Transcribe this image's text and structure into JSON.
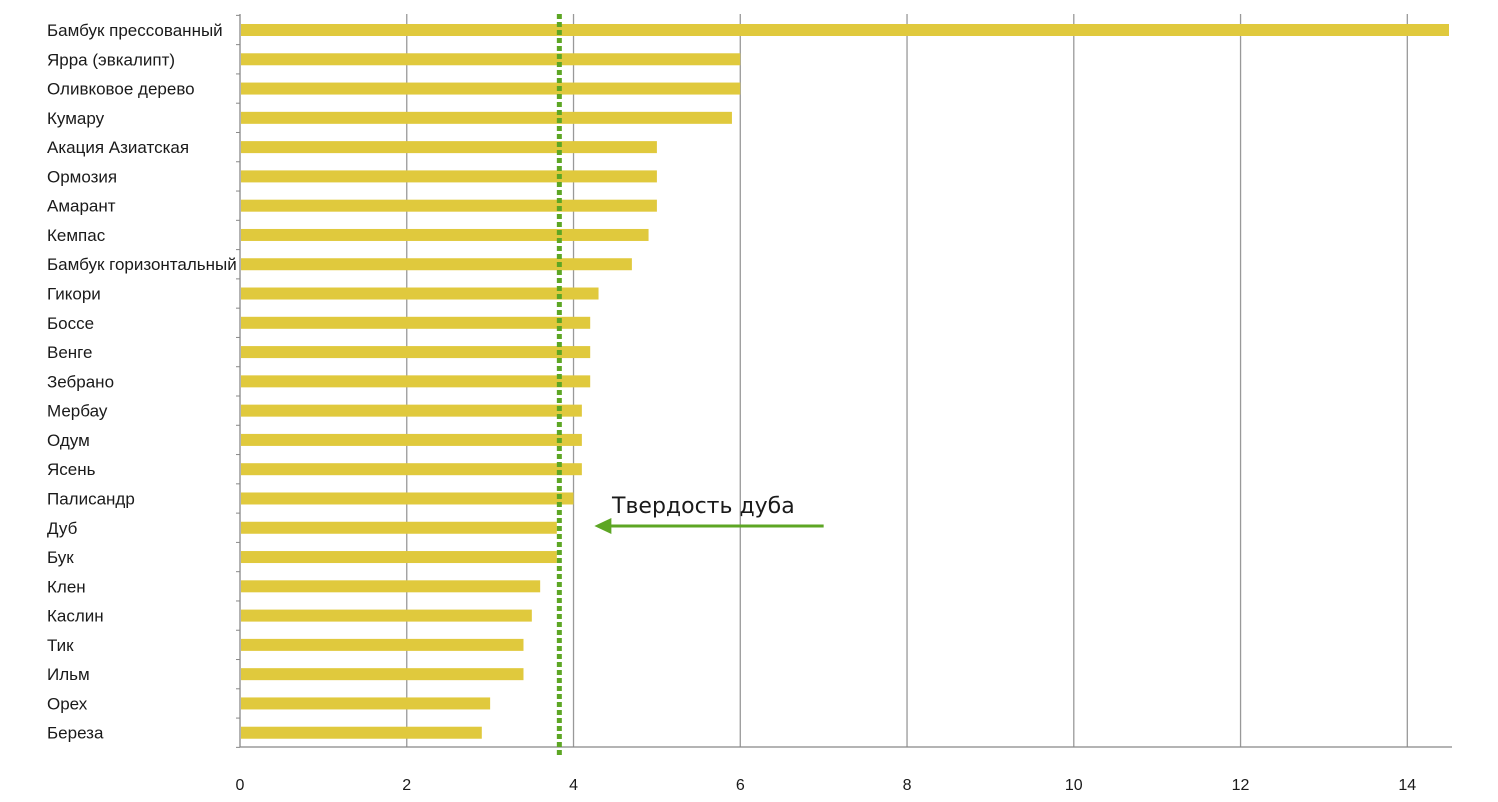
{
  "chart_data": {
    "type": "bar",
    "orientation": "horizontal",
    "title": "",
    "xlabel": "",
    "ylabel": "",
    "categories": [
      "Бамбук прессованный",
      "Ярра (эвкалипт)",
      "Оливковое дерево",
      "Кумару",
      "Акация Азиатская",
      "Ормозия",
      "Амарант",
      "Кемпас",
      "Бамбук горизонтальный",
      "Гикори",
      "Боссе",
      "Венге",
      "Зебрано",
      "Мербау",
      "Одум",
      "Ясень",
      "Палисандр",
      "Дуб",
      "Бук",
      "Клен",
      "Каслин",
      "Тик",
      "Ильм",
      "Орех",
      "Береза"
    ],
    "values": [
      14.5,
      6.0,
      6.0,
      5.9,
      5.0,
      5.0,
      5.0,
      4.9,
      4.7,
      4.3,
      4.2,
      4.2,
      4.2,
      4.1,
      4.1,
      4.1,
      4.0,
      3.8,
      3.8,
      3.6,
      3.5,
      3.4,
      3.4,
      3.0,
      2.9
    ],
    "xlim": [
      0,
      14.5
    ],
    "xticks": [
      "0",
      "2",
      "4",
      "6",
      "8",
      "10",
      "12",
      "14"
    ],
    "grid": "vertical",
    "reference_line": {
      "value": 3.83,
      "style": "dotted"
    },
    "annotation": {
      "text": "Твердость дуба",
      "arrow_from_x": 7.0,
      "arrow_to_x": 4.25
    },
    "colors": {
      "bar": "#E0C93D",
      "reference_line": "#5DA624",
      "arrow": "#5DA624",
      "grid": "#999999",
      "axis": "#888888"
    }
  }
}
